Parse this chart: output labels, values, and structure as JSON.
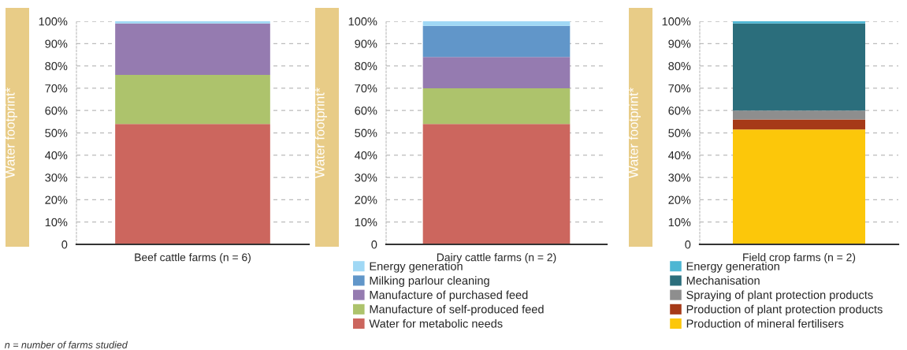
{
  "chart_data": [
    {
      "type": "bar",
      "stacked": true,
      "ylabel": "Water footprint*",
      "categories": [
        "Beef cattle farms (n = 6)"
      ],
      "ylim": [
        0,
        100
      ],
      "yticks": [
        0,
        {
          "value": 10,
          "label": "10%"
        },
        {
          "value": 20,
          "label": "20%"
        },
        {
          "value": 30,
          "label": "30%"
        },
        {
          "value": 40,
          "label": "40%"
        },
        {
          "value": 50,
          "label": "50%"
        },
        {
          "value": 60,
          "label": "60%"
        },
        {
          "value": 70,
          "label": "70%"
        },
        {
          "value": 80,
          "label": "80%"
        },
        {
          "value": 90,
          "label": "90%"
        },
        {
          "value": 100,
          "label": "100%"
        }
      ],
      "grid": "y",
      "legend": false,
      "series": [
        {
          "color": "#cc665e",
          "values": [
            54
          ]
        },
        {
          "color": "#adc36c",
          "values": [
            22
          ]
        },
        {
          "color": "#957bb0",
          "values": [
            23
          ]
        },
        {
          "color": "#a0d8f5",
          "values": [
            1
          ]
        }
      ],
      "annotations": [
        "n = number of farms studied"
      ]
    },
    {
      "type": "bar",
      "stacked": true,
      "ylabel": "Water footprint*",
      "categories": [
        "Dairy cattle farms (n = 2)"
      ],
      "ylim": [
        0,
        100
      ],
      "yticks": [
        0,
        {
          "value": 10,
          "label": "10%"
        },
        {
          "value": 20,
          "label": "20%"
        },
        {
          "value": 30,
          "label": "30%"
        },
        {
          "value": 40,
          "label": "40%"
        },
        {
          "value": 50,
          "label": "50%"
        },
        {
          "value": 60,
          "label": "60%"
        },
        {
          "value": 70,
          "label": "70%"
        },
        {
          "value": 80,
          "label": "80%"
        },
        {
          "value": 90,
          "label": "90%"
        },
        {
          "value": 100,
          "label": "100%"
        }
      ],
      "grid": "y",
      "legend": "bottom",
      "series": [
        {
          "name": "Water for metabolic needs",
          "color": "#cc665e",
          "values": [
            54
          ]
        },
        {
          "name": "Manufacture of self-produced feed",
          "color": "#adc36c",
          "values": [
            16
          ]
        },
        {
          "name": "Manufacture of purchased feed",
          "color": "#957bb0",
          "values": [
            14
          ]
        },
        {
          "name": "Milking parlour cleaning",
          "color": "#6196c9",
          "values": [
            14
          ]
        },
        {
          "name": "Energy generation",
          "color": "#a0d8f5",
          "values": [
            2
          ]
        }
      ]
    },
    {
      "type": "bar",
      "stacked": true,
      "ylabel": "Water footprint*",
      "categories": [
        "Field crop farms (n = 2)"
      ],
      "ylim": [
        0,
        100
      ],
      "yticks": [
        0,
        {
          "value": 10,
          "label": "10%"
        },
        {
          "value": 20,
          "label": "20%"
        },
        {
          "value": 30,
          "label": "30%"
        },
        {
          "value": 40,
          "label": "40%"
        },
        {
          "value": 50,
          "label": "50%"
        },
        {
          "value": 60,
          "label": "60%"
        },
        {
          "value": 70,
          "label": "70%"
        },
        {
          "value": 80,
          "label": "80%"
        },
        {
          "value": 90,
          "label": "90%"
        },
        {
          "value": 100,
          "label": "100%"
        }
      ],
      "grid": "y",
      "legend": "bottom",
      "series": [
        {
          "name": "Production of mineral fertilisers",
          "color": "#fcc70a",
          "values": [
            51.5
          ]
        },
        {
          "name": "Production of plant protection products",
          "color": "#a63a18",
          "values": [
            4.5
          ]
        },
        {
          "name": "Spraying of plant protection products",
          "color": "#8e8e8e",
          "values": [
            4
          ]
        },
        {
          "name": "Mechanisation",
          "color": "#2b6e7c",
          "values": [
            39
          ]
        },
        {
          "name": "Energy generation",
          "color": "#4db6d3",
          "values": [
            1
          ]
        }
      ]
    }
  ]
}
